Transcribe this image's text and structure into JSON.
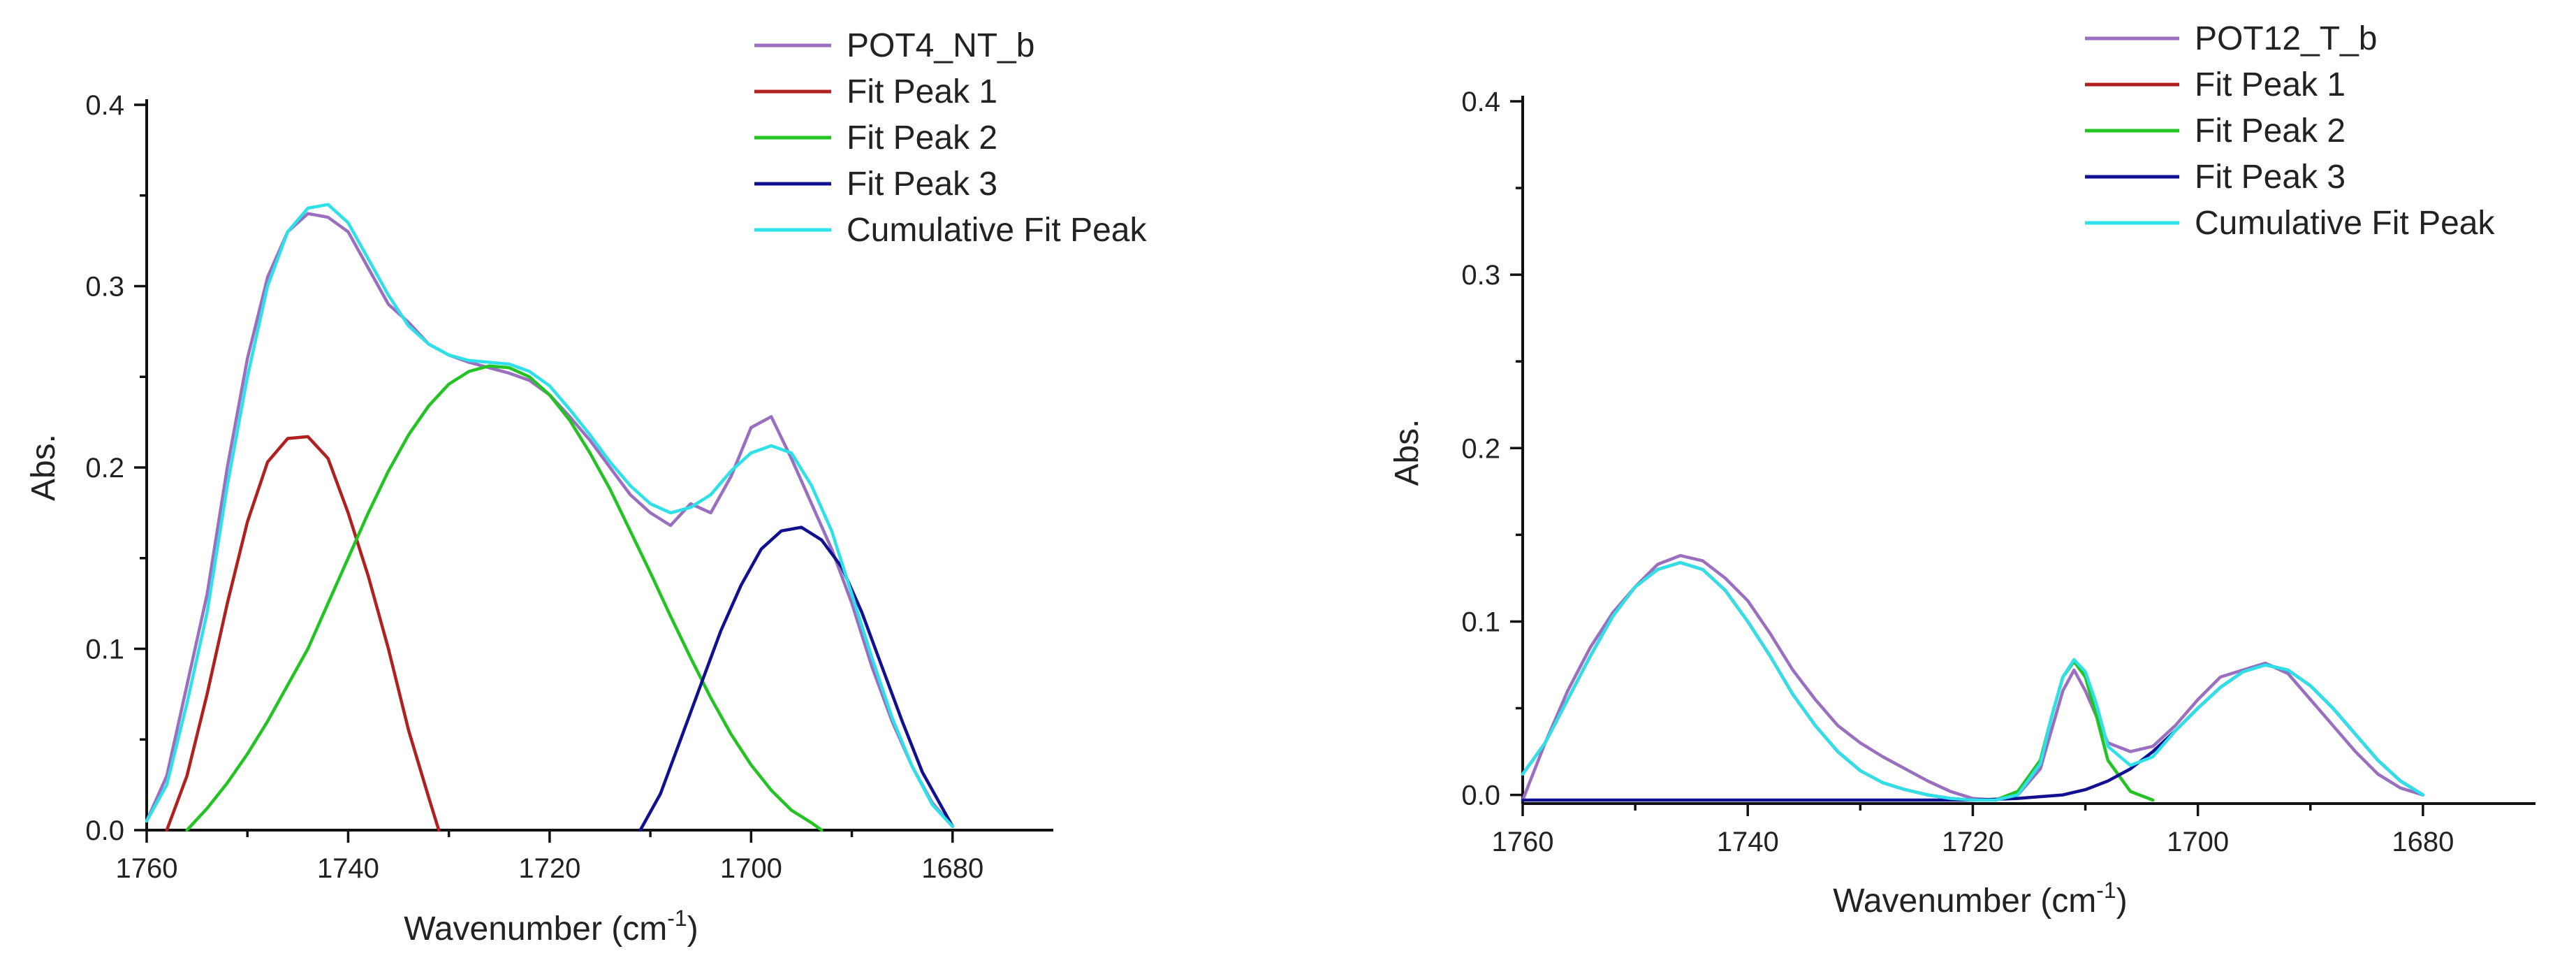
{
  "chart_data": [
    {
      "type": "line",
      "title": "",
      "xlabel": "Wavenumber (cm",
      "xlabel_sup": "-1",
      "xlabel_close": ")",
      "ylabel": "Abs.",
      "xlim": [
        1760,
        1670
      ],
      "ylim": [
        0,
        0.4
      ],
      "xticks": [
        1760,
        1740,
        1720,
        1700,
        1680
      ],
      "yticks": [
        0.0,
        0.1,
        0.2,
        0.3,
        0.4
      ],
      "ytick_labels": [
        "0.0",
        "0.1",
        "0.2",
        "0.3",
        "0.4"
      ],
      "legend_position": "top-right",
      "series": [
        {
          "name": "POT4_NT_b",
          "color": "#9b6fc0",
          "x": [
            1760,
            1758,
            1756,
            1754,
            1752,
            1750,
            1748,
            1746,
            1744,
            1742,
            1740,
            1738,
            1736,
            1734,
            1732,
            1730,
            1728,
            1726,
            1724,
            1722,
            1720,
            1718,
            1716,
            1714,
            1712,
            1710,
            1708,
            1706,
            1704,
            1702,
            1700,
            1698,
            1696,
            1694,
            1692,
            1690,
            1688,
            1686,
            1684,
            1682,
            1680
          ],
          "values": [
            0.005,
            0.03,
            0.08,
            0.13,
            0.2,
            0.26,
            0.305,
            0.33,
            0.34,
            0.338,
            0.33,
            0.31,
            0.29,
            0.28,
            0.268,
            0.262,
            0.258,
            0.255,
            0.252,
            0.248,
            0.24,
            0.228,
            0.215,
            0.2,
            0.185,
            0.175,
            0.168,
            0.18,
            0.175,
            0.195,
            0.222,
            0.228,
            0.205,
            0.18,
            0.155,
            0.125,
            0.09,
            0.06,
            0.035,
            0.015,
            0.002
          ]
        },
        {
          "name": "Fit Peak 1",
          "color": "#b02020",
          "x": [
            1758,
            1756,
            1754,
            1752,
            1750,
            1748,
            1746,
            1744,
            1742,
            1740,
            1738,
            1736,
            1734,
            1732,
            1731
          ],
          "values": [
            0.0,
            0.03,
            0.075,
            0.125,
            0.17,
            0.203,
            0.216,
            0.217,
            0.205,
            0.175,
            0.14,
            0.1,
            0.055,
            0.018,
            0.0
          ]
        },
        {
          "name": "Fit Peak 2",
          "color": "#22c322",
          "x": [
            1756,
            1754,
            1752,
            1750,
            1748,
            1746,
            1744,
            1742,
            1740,
            1738,
            1736,
            1734,
            1732,
            1730,
            1728,
            1726,
            1724,
            1722,
            1720,
            1718,
            1716,
            1714,
            1712,
            1710,
            1708,
            1706,
            1704,
            1702,
            1700,
            1698,
            1696,
            1694,
            1693
          ],
          "values": [
            0.0,
            0.012,
            0.026,
            0.042,
            0.06,
            0.08,
            0.1,
            0.125,
            0.15,
            0.175,
            0.198,
            0.218,
            0.234,
            0.246,
            0.253,
            0.256,
            0.255,
            0.25,
            0.24,
            0.226,
            0.208,
            0.188,
            0.165,
            0.142,
            0.118,
            0.095,
            0.073,
            0.053,
            0.036,
            0.022,
            0.011,
            0.004,
            0.0
          ]
        },
        {
          "name": "Fit Peak 3",
          "color": "#101090",
          "x": [
            1711,
            1709,
            1707,
            1705,
            1703,
            1701,
            1699,
            1697,
            1695,
            1693,
            1691,
            1689,
            1687,
            1685,
            1683,
            1681,
            1680
          ],
          "values": [
            0.0,
            0.02,
            0.05,
            0.08,
            0.11,
            0.135,
            0.155,
            0.165,
            0.167,
            0.16,
            0.145,
            0.12,
            0.09,
            0.06,
            0.032,
            0.012,
            0.002
          ]
        },
        {
          "name": "Cumulative Fit Peak",
          "color": "#2ee0e8",
          "x": [
            1760,
            1758,
            1756,
            1754,
            1752,
            1750,
            1748,
            1746,
            1744,
            1742,
            1740,
            1738,
            1736,
            1734,
            1732,
            1730,
            1728,
            1726,
            1724,
            1722,
            1720,
            1718,
            1716,
            1714,
            1712,
            1710,
            1708,
            1706,
            1704,
            1702,
            1700,
            1698,
            1696,
            1694,
            1692,
            1690,
            1688,
            1686,
            1684,
            1682,
            1680
          ],
          "values": [
            0.005,
            0.025,
            0.07,
            0.12,
            0.19,
            0.25,
            0.3,
            0.33,
            0.343,
            0.345,
            0.335,
            0.315,
            0.295,
            0.278,
            0.268,
            0.262,
            0.259,
            0.258,
            0.257,
            0.253,
            0.245,
            0.232,
            0.218,
            0.203,
            0.19,
            0.18,
            0.175,
            0.178,
            0.185,
            0.198,
            0.208,
            0.212,
            0.208,
            0.19,
            0.165,
            0.13,
            0.095,
            0.062,
            0.035,
            0.014,
            0.002
          ]
        }
      ]
    },
    {
      "type": "line",
      "title": "",
      "xlabel": "Wavenumber (cm",
      "xlabel_sup": "-1",
      "xlabel_close": ")",
      "ylabel": "Abs.",
      "xlim": [
        1760,
        1670
      ],
      "ylim": [
        -0.005,
        0.4
      ],
      "xticks": [
        1760,
        1740,
        1720,
        1700,
        1680
      ],
      "yticks": [
        0.0,
        0.1,
        0.2,
        0.3,
        0.4
      ],
      "ytick_labels": [
        "0.0",
        "0.1",
        "0.2",
        "0.3",
        "0.4"
      ],
      "legend_position": "top-right",
      "series": [
        {
          "name": "POT12_T_b",
          "color": "#9b6fc0",
          "x": [
            1760,
            1758,
            1756,
            1754,
            1752,
            1750,
            1748,
            1746,
            1744,
            1742,
            1740,
            1738,
            1736,
            1734,
            1732,
            1730,
            1728,
            1726,
            1724,
            1722,
            1720,
            1718,
            1716,
            1714,
            1712,
            1711,
            1710,
            1708,
            1706,
            1704,
            1702,
            1700,
            1698,
            1696,
            1694,
            1692,
            1690,
            1688,
            1686,
            1684,
            1682,
            1680
          ],
          "values": [
            -0.003,
            0.03,
            0.06,
            0.085,
            0.105,
            0.12,
            0.133,
            0.138,
            0.135,
            0.125,
            0.112,
            0.093,
            0.072,
            0.055,
            0.04,
            0.03,
            0.022,
            0.015,
            0.008,
            0.002,
            -0.002,
            -0.003,
            0.0,
            0.015,
            0.06,
            0.072,
            0.06,
            0.03,
            0.025,
            0.028,
            0.04,
            0.055,
            0.068,
            0.072,
            0.076,
            0.07,
            0.055,
            0.04,
            0.025,
            0.012,
            0.004,
            0.0
          ]
        },
        {
          "name": "Fit Peak 1",
          "color": "#b02020",
          "x": [
            1760,
            1758,
            1756,
            1754,
            1752,
            1750,
            1748,
            1746,
            1744,
            1742,
            1740,
            1738,
            1736,
            1734,
            1732,
            1730,
            1728,
            1726,
            1724,
            1722,
            1720
          ],
          "values": [
            0.012,
            0.03,
            0.055,
            0.08,
            0.103,
            0.12,
            0.13,
            0.134,
            0.13,
            0.118,
            0.1,
            0.08,
            0.058,
            0.04,
            0.025,
            0.014,
            0.007,
            0.003,
            0.0,
            -0.002,
            -0.003
          ]
        },
        {
          "name": "Fit Peak 2",
          "color": "#22c322",
          "x": [
            1718,
            1716,
            1714,
            1713,
            1712,
            1711,
            1710,
            1709,
            1708,
            1706,
            1704
          ],
          "values": [
            -0.003,
            0.002,
            0.02,
            0.045,
            0.068,
            0.077,
            0.068,
            0.045,
            0.02,
            0.002,
            -0.003
          ]
        },
        {
          "name": "Fit Peak 3",
          "color": "#101090",
          "x": [
            1760,
            1730,
            1720,
            1716,
            1712,
            1710,
            1708,
            1706,
            1704,
            1702,
            1700,
            1698,
            1696,
            1694,
            1692,
            1690,
            1688,
            1686,
            1684,
            1682,
            1680
          ],
          "values": [
            -0.003,
            -0.003,
            -0.003,
            -0.002,
            0.0,
            0.003,
            0.008,
            0.015,
            0.025,
            0.037,
            0.05,
            0.062,
            0.071,
            0.075,
            0.072,
            0.063,
            0.05,
            0.035,
            0.02,
            0.008,
            0.0
          ]
        },
        {
          "name": "Cumulative Fit Peak",
          "color": "#2ee0e8",
          "x": [
            1760,
            1758,
            1756,
            1754,
            1752,
            1750,
            1748,
            1746,
            1744,
            1742,
            1740,
            1738,
            1736,
            1734,
            1732,
            1730,
            1728,
            1726,
            1724,
            1722,
            1720,
            1718,
            1716,
            1714,
            1713,
            1712,
            1711,
            1710,
            1709,
            1708,
            1706,
            1704,
            1702,
            1700,
            1698,
            1696,
            1694,
            1692,
            1690,
            1688,
            1686,
            1684,
            1682,
            1680
          ],
          "values": [
            0.012,
            0.03,
            0.055,
            0.08,
            0.103,
            0.12,
            0.13,
            0.134,
            0.13,
            0.118,
            0.1,
            0.08,
            0.058,
            0.04,
            0.025,
            0.014,
            0.007,
            0.003,
            0.0,
            -0.002,
            -0.003,
            -0.003,
            0.0,
            0.018,
            0.045,
            0.068,
            0.078,
            0.071,
            0.052,
            0.028,
            0.017,
            0.022,
            0.037,
            0.05,
            0.062,
            0.071,
            0.075,
            0.072,
            0.063,
            0.05,
            0.035,
            0.02,
            0.008,
            0.0
          ]
        }
      ]
    }
  ]
}
